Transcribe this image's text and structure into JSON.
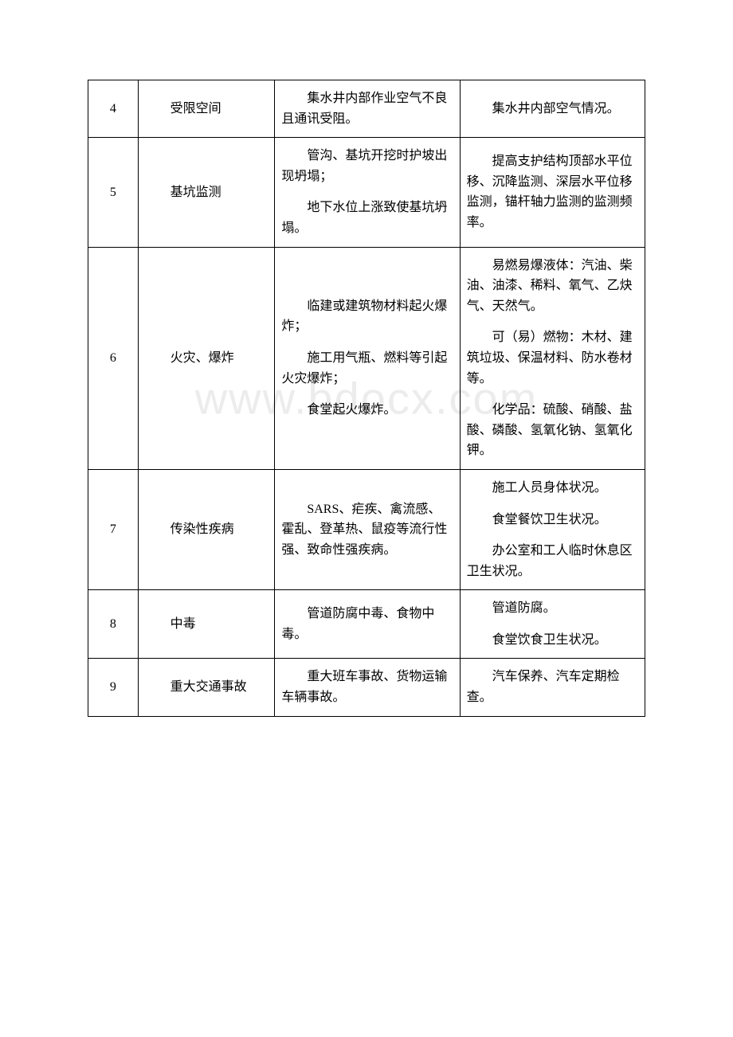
{
  "watermark": "www.bdocx.com",
  "rows": [
    {
      "num": "4",
      "category": "受限空间",
      "desc": [
        "集水井内部作业空气不良且通讯受阻。"
      ],
      "monitor": [
        "集水井内部空气情况。"
      ]
    },
    {
      "num": "5",
      "category": "基坑监测",
      "desc": [
        "管沟、基坑开挖时护坡出现坍塌；",
        "地下水位上涨致使基坑坍塌。"
      ],
      "monitor": [
        "提高支护结构顶部水平位移、沉降监测、深层水平位移监测，锚杆轴力监测的监测频率。"
      ]
    },
    {
      "num": "6",
      "category": "火灾、爆炸",
      "desc": [
        "临建或建筑物材料起火爆炸；",
        "施工用气瓶、燃料等引起火灾爆炸；",
        "食堂起火爆炸。"
      ],
      "monitor": [
        "易燃易爆液体：汽油、柴油、油漆、稀料、氧气、乙炔气、天然气。",
        "可（易）燃物：木材、建筑垃圾、保温材料、防水卷材等。",
        "化学品：硫酸、硝酸、盐酸、磷酸、氢氧化钠、氢氧化钾。"
      ]
    },
    {
      "num": "7",
      "category": "传染性疾病",
      "desc": [
        "SARS、疟疾、禽流感、霍乱、登革热、鼠疫等流行性强、致命性强疾病。"
      ],
      "monitor": [
        "施工人员身体状况。",
        "食堂餐饮卫生状况。",
        "办公室和工人临时休息区卫生状况。"
      ]
    },
    {
      "num": "8",
      "category": "中毒",
      "desc": [
        "管道防腐中毒、食物中毒。"
      ],
      "monitor": [
        "管道防腐。",
        "食堂饮食卫生状况。"
      ]
    },
    {
      "num": "9",
      "category": "重大交通事故",
      "desc": [
        "重大班车事故、货物运输车辆事故。"
      ],
      "monitor": [
        "汽车保养、汽车定期检查。"
      ]
    }
  ]
}
